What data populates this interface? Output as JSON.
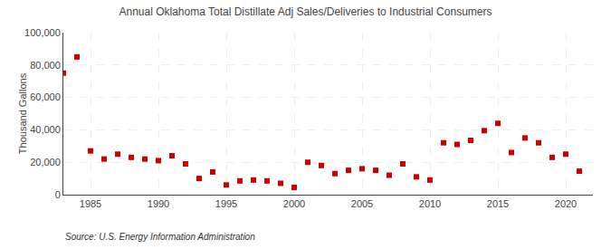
{
  "chart_data": {
    "type": "scatter",
    "title": "Annual Oklahoma Total Distillate Adj Sales/Deliveries to Industrial Consumers",
    "ylabel": "Thousand Gallons",
    "annotation": "Source: U.S. Energy Information Administration",
    "x": [
      1983,
      1984,
      1985,
      1986,
      1987,
      1988,
      1989,
      1990,
      1991,
      1992,
      1993,
      1994,
      1995,
      1996,
      1997,
      1998,
      1999,
      2000,
      2001,
      2002,
      2003,
      2004,
      2005,
      2006,
      2007,
      2008,
      2009,
      2010,
      2011,
      2012,
      2013,
      2014,
      2015,
      2016,
      2017,
      2018,
      2019,
      2020,
      2021
    ],
    "values": [
      75000,
      85000,
      27000,
      22000,
      25000,
      23000,
      22000,
      21000,
      24000,
      19000,
      10000,
      14000,
      6000,
      8500,
      9000,
      8500,
      7000,
      4500,
      20000,
      18000,
      13000,
      15000,
      16000,
      15000,
      12000,
      19000,
      11000,
      9000,
      32000,
      31000,
      33500,
      39500,
      44000,
      26000,
      35000,
      32000,
      23000,
      25000,
      14500
    ],
    "color": "#cc0000",
    "marker": "square",
    "xlim": [
      1983,
      2022
    ],
    "xticks": [
      1985,
      1990,
      1995,
      2000,
      2005,
      2010,
      2015,
      2020
    ],
    "ylim": [
      0,
      100000
    ],
    "yticks": [
      0,
      {
        "value": 20000,
        "label": "20,000"
      },
      {
        "value": 40000,
        "label": "40,000"
      },
      {
        "value": 60000,
        "label": "60,000"
      },
      {
        "value": 80000,
        "label": "80,000"
      },
      {
        "value": 100000,
        "label": "100,000"
      }
    ],
    "grid": true
  }
}
